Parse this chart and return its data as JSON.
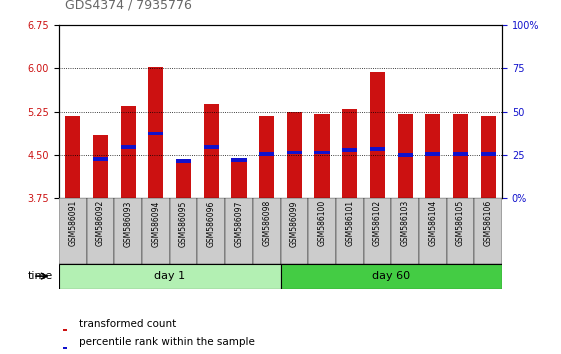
{
  "title": "GDS4374 / 7935776",
  "samples": [
    "GSM586091",
    "GSM586092",
    "GSM586093",
    "GSM586094",
    "GSM586095",
    "GSM586096",
    "GSM586097",
    "GSM586098",
    "GSM586099",
    "GSM586100",
    "GSM586101",
    "GSM586102",
    "GSM586103",
    "GSM586104",
    "GSM586105",
    "GSM586106"
  ],
  "bar_base": 3.75,
  "bar_tops": [
    5.18,
    4.85,
    5.35,
    6.02,
    4.42,
    5.38,
    4.43,
    5.17,
    5.25,
    5.2,
    5.3,
    5.93,
    5.2,
    5.21,
    5.2,
    5.17
  ],
  "blue_positions": [
    null,
    4.43,
    4.63,
    4.87,
    4.39,
    4.63,
    4.41,
    4.52,
    4.54,
    4.54,
    4.58,
    4.6,
    4.5,
    4.52,
    4.52,
    4.52
  ],
  "ylim_left": [
    3.75,
    6.75
  ],
  "yticks_left": [
    3.75,
    4.5,
    5.25,
    6.0,
    6.75
  ],
  "ylim_right": [
    0,
    100
  ],
  "yticks_right": [
    0,
    25,
    50,
    75,
    100
  ],
  "ytick_labels_right": [
    "0%",
    "25",
    "50",
    "75",
    "100%"
  ],
  "bar_color": "#cc1111",
  "blue_color": "#1111cc",
  "day1_color_light": "#b3f0b3",
  "day1_color_dark": "#66dd66",
  "day60_color": "#44cc44",
  "group_label_day1": "day 1",
  "group_label_day60": "day 60",
  "legend_red": "transformed count",
  "legend_blue": "percentile rank within the sample",
  "time_label": "time",
  "bg_color": "#ffffff",
  "title_color": "#666666",
  "left_axis_color": "#cc1111",
  "right_axis_color": "#1111cc",
  "xtick_bg_color": "#cccccc",
  "n_day1": 8,
  "n_day60": 8
}
